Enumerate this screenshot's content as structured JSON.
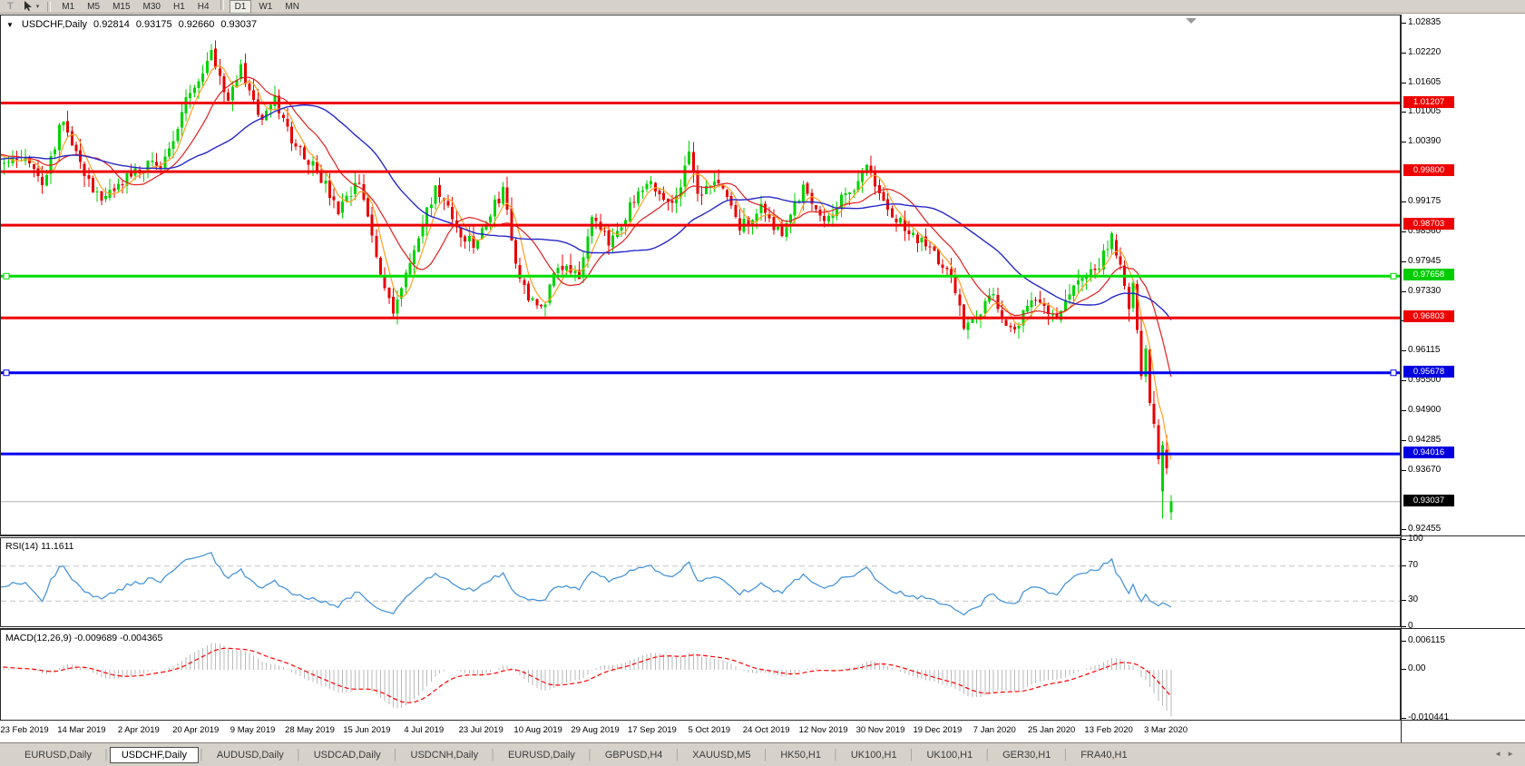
{
  "toolbar": {
    "text_tool_label": "T",
    "cursor_caret": "▾",
    "timeframes": [
      "M1",
      "M5",
      "M15",
      "M30",
      "H1",
      "H4",
      "D1",
      "W1",
      "MN"
    ],
    "active_timeframe": "D1"
  },
  "main_chart": {
    "dropdown_marker": "▼",
    "symbol": "USDCHF,Daily",
    "ohlc": {
      "open": "0.92814",
      "high": "0.93175",
      "low": "0.92660",
      "close": "0.93037"
    }
  },
  "rsi_panel": {
    "label": "RSI(14) 11.1611",
    "axis_labels": [
      "100",
      "70",
      "30",
      "0"
    ],
    "level_values": [
      100,
      70,
      30,
      0
    ],
    "dashed_levels": [
      70,
      30
    ]
  },
  "macd_panel": {
    "label": "MACD(12,26,9) -0.009689 -0.004365",
    "axis_labels": [
      "0.006115",
      "0.00",
      "-0.010441"
    ],
    "axis_values": [
      0.006115,
      0.0,
      -0.010441
    ]
  },
  "price_axis": {
    "ticks": [
      "1.02835",
      "1.02220",
      "1.01605",
      "1.01005",
      "1.00390",
      "0.99175",
      "0.98560",
      "0.97945",
      "0.97330",
      "0.96730",
      "0.96115",
      "0.95500",
      "0.94900",
      "0.94285",
      "0.93670",
      "0.92455"
    ],
    "line_labels": [
      {
        "text": "1.01207",
        "color": "#ee0000"
      },
      {
        "text": "0.99800",
        "color": "#ee0000"
      },
      {
        "text": "0.98703",
        "color": "#ee0000"
      },
      {
        "text": "0.97658",
        "color": "#00cc00"
      },
      {
        "text": "0.96803",
        "color": "#ee0000"
      },
      {
        "text": "0.95678",
        "color": "#0000e0"
      },
      {
        "text": "0.94016",
        "color": "#0000e0"
      }
    ],
    "current_price_label": {
      "text": "0.93037",
      "color": "#000000"
    }
  },
  "date_axis": {
    "labels": [
      "23 Feb 2019",
      "14 Mar 2019",
      "2 Apr 2019",
      "20 Apr 2019",
      "9 May 2019",
      "28 May 2019",
      "15 Jun 2019",
      "4 Jul 2019",
      "23 Jul 2019",
      "10 Aug 2019",
      "29 Aug 2019",
      "17 Sep 2019",
      "5 Oct 2019",
      "24 Oct 2019",
      "12 Nov 2019",
      "30 Nov 2019",
      "19 Dec 2019",
      "7 Jan 2020",
      "25 Jan 2020",
      "13 Feb 2020",
      "3 Mar 2020"
    ]
  },
  "tab_bar": {
    "tabs": [
      "EURUSD,Daily",
      "USDCHF,Daily",
      "AUDUSD,Daily",
      "USDCAD,Daily",
      "USDCNH,Daily",
      "EURUSD,Daily",
      "GBPUSD,H4",
      "XAUUSD,M5",
      "HK50,H1",
      "UK100,H1",
      "UK100,H1",
      "GER30,H1",
      "FRA40,H1"
    ],
    "active_index": 1,
    "scroll_left": "◄",
    "scroll_right": "►"
  },
  "colors": {
    "bull": "#00d300",
    "bear": "#e80000",
    "ma_fast": "#ff9f1f",
    "ma_mid": "#e02020",
    "ma_slow": "#2828c8",
    "rsi_line": "#4a96d9",
    "macd_hist": "#b9b9b9",
    "macd_signal": "#ff0000",
    "current_price_line": "#b4b4b4",
    "shift_marker": "#9a9a9a"
  },
  "chart_data": {
    "type": "candlestick",
    "symbol": "USDCHF",
    "timeframe": "Daily",
    "visible_price_range": {
      "high": 1.02835,
      "low": 0.92455
    },
    "horizontal_lines": [
      {
        "price": 1.01207,
        "color": "#ee0000",
        "width": 3
      },
      {
        "price": 0.998,
        "color": "#ee0000",
        "width": 3
      },
      {
        "price": 0.98703,
        "color": "#ee0000",
        "width": 3
      },
      {
        "price": 0.97658,
        "color": "#00dd00",
        "width": 3,
        "handles": true
      },
      {
        "price": 0.96803,
        "color": "#ee0000",
        "width": 3
      },
      {
        "price": 0.95678,
        "color": "#0000ee",
        "width": 3,
        "handles": true
      },
      {
        "price": 0.94016,
        "color": "#0000ee",
        "width": 3
      }
    ],
    "current_price": 0.93037,
    "last_candle": {
      "open": 0.92814,
      "high": 0.93175,
      "low": 0.9266,
      "close": 0.93037
    },
    "indicators": [
      {
        "name": "RSI",
        "period": 14,
        "value": 11.1611
      },
      {
        "name": "MACD",
        "params": [
          12,
          26,
          9
        ],
        "value": -0.009689,
        "signal": -0.004365
      },
      {
        "name": "MA-fast"
      },
      {
        "name": "MA-medium"
      },
      {
        "name": "MA-slow"
      }
    ],
    "price_path_anchors": [
      [
        -40,
        0.998
      ],
      [
        -20,
        1.002
      ],
      [
        0,
        1.0005
      ],
      [
        4,
        0.9958
      ],
      [
        9,
        1.0092
      ],
      [
        13,
        0.9998
      ],
      [
        18,
        0.9912
      ],
      [
        24,
        0.9968
      ],
      [
        29,
        0.999
      ],
      [
        33,
        1.0002
      ],
      [
        39,
        1.0145
      ],
      [
        44,
        1.0226
      ],
      [
        48,
        1.0132
      ],
      [
        51,
        1.019
      ],
      [
        56,
        1.0082
      ],
      [
        59,
        1.0125
      ],
      [
        63,
        1.0048
      ],
      [
        69,
        0.9985
      ],
      [
        74,
        0.9895
      ],
      [
        79,
        0.9958
      ],
      [
        84,
        0.977
      ],
      [
        87,
        0.97
      ],
      [
        91,
        0.979
      ],
      [
        97,
        0.9948
      ],
      [
        102,
        0.9865
      ],
      [
        106,
        0.9825
      ],
      [
        113,
        0.9945
      ],
      [
        117,
        0.975
      ],
      [
        122,
        0.9695
      ],
      [
        126,
        0.9795
      ],
      [
        131,
        0.9772
      ],
      [
        134,
        0.9878
      ],
      [
        138,
        0.9835
      ],
      [
        144,
        0.992
      ],
      [
        148,
        0.9952
      ],
      [
        153,
        0.991
      ],
      [
        157,
        1.0012
      ],
      [
        159,
        0.993
      ],
      [
        164,
        0.9962
      ],
      [
        169,
        0.9865
      ],
      [
        174,
        0.9905
      ],
      [
        179,
        0.9852
      ],
      [
        184,
        0.9948
      ],
      [
        189,
        0.9885
      ],
      [
        194,
        0.993
      ],
      [
        199,
        0.9988
      ],
      [
        204,
        0.99
      ],
      [
        209,
        0.9855
      ],
      [
        214,
        0.982
      ],
      [
        219,
        0.9768
      ],
      [
        222,
        0.9665
      ],
      [
        226,
        0.97
      ],
      [
        229,
        0.9722
      ],
      [
        233,
        0.9655
      ],
      [
        239,
        0.9715
      ],
      [
        244,
        0.969
      ],
      [
        249,
        0.9755
      ],
      [
        254,
        0.9788
      ],
      [
        257,
        0.9845
      ]
    ],
    "final_candles": [
      [
        0.984,
        0.9852,
        0.9802,
        0.9808
      ],
      [
        0.9806,
        0.9825,
        0.9778,
        0.979
      ],
      [
        0.9788,
        0.9798,
        0.9738,
        0.9746
      ],
      [
        0.9744,
        0.9752,
        0.9672,
        0.9698
      ],
      [
        0.97,
        0.976,
        0.9692,
        0.9752
      ],
      [
        0.975,
        0.9758,
        0.9648,
        0.9656
      ],
      [
        0.9654,
        0.968,
        0.9553,
        0.9561
      ],
      [
        0.956,
        0.9625,
        0.9548,
        0.9618
      ],
      [
        0.9616,
        0.9622,
        0.95,
        0.9506
      ],
      [
        0.9504,
        0.953,
        0.9455,
        0.9463
      ],
      [
        0.946,
        0.9472,
        0.938,
        0.9391
      ],
      [
        0.9325,
        0.9428,
        0.9269,
        0.9419
      ],
      [
        0.941,
        0.944,
        0.936,
        0.9372
      ],
      [
        0.92814,
        0.93175,
        0.9266,
        0.93037
      ]
    ]
  }
}
